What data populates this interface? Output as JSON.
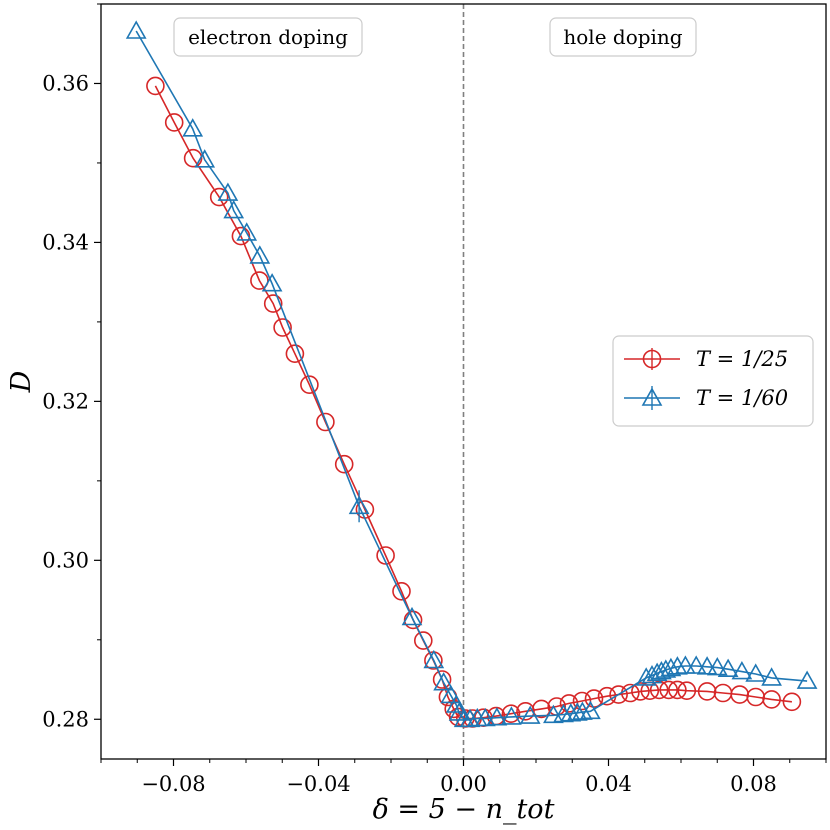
{
  "chart_data": {
    "type": "line",
    "xlabel": "δ = 5 − n_tot",
    "ylabel": "D",
    "xlim": [
      -0.1,
      0.1
    ],
    "ylim": [
      0.275,
      0.37
    ],
    "x_ticks": [
      -0.08,
      -0.04,
      0.0,
      0.04,
      0.08
    ],
    "x_tick_labels": [
      "−0.08",
      "−0.04",
      "0.00",
      "0.04",
      "0.08"
    ],
    "y_ticks": [
      0.28,
      0.3,
      0.32,
      0.34,
      0.36
    ],
    "y_tick_labels": [
      "0.28",
      "0.30",
      "0.32",
      "0.34",
      "0.36"
    ],
    "vline_x": 0.0,
    "annotations": [
      {
        "text": "electron doping",
        "x": -0.0615,
        "y": 0.3655
      },
      {
        "text": "hole doping",
        "x": 0.0222,
        "y": 0.3655
      }
    ],
    "legend_position": "center-right",
    "series": [
      {
        "name": "T = 1/25",
        "color": "#d62728",
        "marker": "circle",
        "x": [
          -0.085,
          -0.0798,
          -0.0746,
          -0.0674,
          -0.0614,
          -0.0563,
          -0.0525,
          -0.0499,
          -0.0465,
          -0.0425,
          -0.0381,
          -0.0329,
          -0.0272,
          -0.0215,
          -0.0171,
          -0.0139,
          -0.0111,
          -0.0083,
          -0.0059,
          -0.0043,
          -0.0027,
          -0.0015,
          0.0005,
          0.0025,
          0.0055,
          0.009,
          0.0131,
          0.0171,
          0.0215,
          0.0257,
          0.0291,
          0.0327,
          0.036,
          0.0396,
          0.0428,
          0.046,
          0.0488,
          0.0514,
          0.054,
          0.0566,
          0.059,
          0.0616,
          0.0672,
          0.0716,
          0.0762,
          0.0806,
          0.085,
          0.0906
        ],
        "y": [
          0.3597,
          0.3551,
          0.3506,
          0.3457,
          0.3408,
          0.3352,
          0.3323,
          0.3293,
          0.326,
          0.3221,
          0.3174,
          0.3121,
          0.3064,
          0.3006,
          0.2961,
          0.2925,
          0.2899,
          0.2874,
          0.285,
          0.2828,
          0.2813,
          0.2803,
          0.2801,
          0.2801,
          0.2802,
          0.2804,
          0.2807,
          0.281,
          0.2813,
          0.2816,
          0.282,
          0.2823,
          0.2826,
          0.2829,
          0.2831,
          0.2833,
          0.2835,
          0.2836,
          0.2837,
          0.2837,
          0.2837,
          0.2836,
          0.2835,
          0.2833,
          0.2831,
          0.2828,
          0.2825,
          0.2822
        ]
      },
      {
        "name": "T = 1/60",
        "color": "#1f77b4",
        "marker": "triangle",
        "x": [
          -0.0903,
          -0.0747,
          -0.0714,
          -0.065,
          -0.0634,
          -0.0598,
          -0.0562,
          -0.0528,
          -0.0288,
          -0.0142,
          -0.0082,
          -0.0055,
          -0.0035,
          -0.002,
          -0.0012,
          0.0002,
          0.0018,
          0.0038,
          0.006,
          0.0092,
          0.0132,
          0.0184,
          0.0248,
          0.0276,
          0.0296,
          0.0314,
          0.0328,
          0.035,
          0.0504,
          0.052,
          0.0534,
          0.0546,
          0.0558,
          0.0572,
          0.059,
          0.0612,
          0.0642,
          0.0672,
          0.07,
          0.073,
          0.0768,
          0.0806,
          0.085,
          0.0948
        ],
        "y": [
          0.3666,
          0.3543,
          0.3504,
          0.3462,
          0.344,
          0.3412,
          0.3383,
          0.3348,
          0.3068,
          0.2928,
          0.2874,
          0.2846,
          0.283,
          0.2818,
          0.2808,
          0.28,
          0.28,
          0.2801,
          0.2801,
          0.2802,
          0.2803,
          0.2804,
          0.2805,
          0.2806,
          0.2807,
          0.2808,
          0.2809,
          0.281,
          0.2852,
          0.2855,
          0.2858,
          0.286,
          0.2862,
          0.2864,
          0.2866,
          0.2867,
          0.2867,
          0.2866,
          0.2865,
          0.2863,
          0.286,
          0.2857,
          0.2852,
          0.2848
        ]
      }
    ]
  }
}
